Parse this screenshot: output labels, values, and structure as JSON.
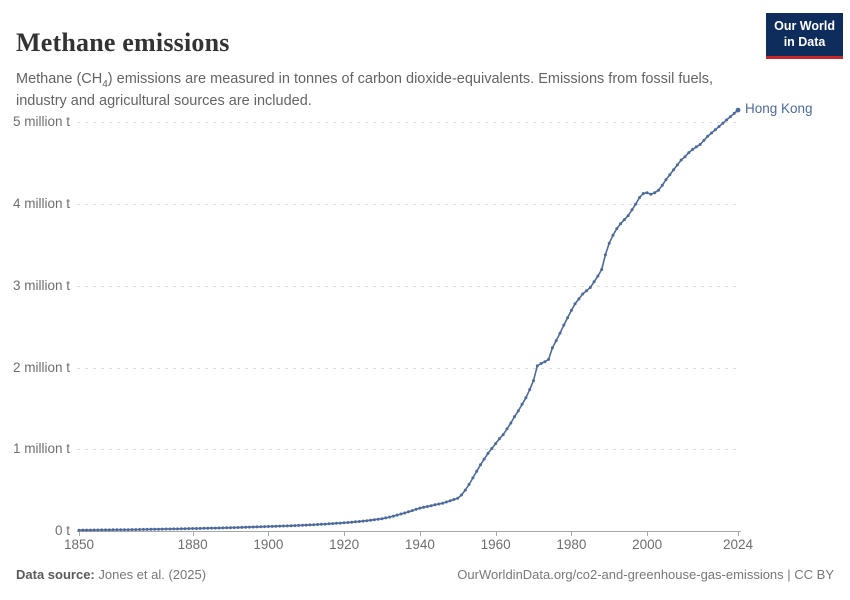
{
  "header": {
    "title": "Methane emissions",
    "subtitle_pre": "Methane (CH",
    "subtitle_sub": "4",
    "subtitle_post": ") emissions are measured in tonnes of carbon dioxide-equivalents. Emissions from fossil fuels, industry and agricultural sources are included.",
    "logo": {
      "line1": "Our World",
      "line2": "in Data",
      "bg_color": "#0E2C5C",
      "accent_color": "#C5272D"
    }
  },
  "footer": {
    "datasource_label": "Data source:",
    "datasource_value": "Jones et al. (2025)",
    "attribution": "OurWorldinData.org/co2-and-greenhouse-gas-emissions | CC BY"
  },
  "chart_data": {
    "type": "line",
    "title": "Methane emissions",
    "entity_label": "Hong Kong",
    "unit": "tonnes of CO2-equivalents",
    "value_scale": "millions",
    "line_color": "#4C6A9C",
    "grid": true,
    "gridline_color": "#dcdcdc",
    "axis_color": "#a8a8a8",
    "tick_label_color": "#6e6e6e",
    "xlim": [
      1850,
      2024
    ],
    "ylim": [
      0,
      5.25
    ],
    "x_ticks": [
      1850,
      1880,
      1900,
      1920,
      1940,
      1960,
      1980,
      2000,
      2024
    ],
    "y_ticks": [
      {
        "value": 0,
        "label": "0 t"
      },
      {
        "value": 1,
        "label": "1 million t"
      },
      {
        "value": 2,
        "label": "2 million t"
      },
      {
        "value": 3,
        "label": "3 million t"
      },
      {
        "value": 4,
        "label": "4 million t"
      },
      {
        "value": 5,
        "label": "5 million t"
      }
    ],
    "series": [
      {
        "name": "Hong Kong",
        "points": [
          [
            1850,
            0.01
          ],
          [
            1852,
            0.011
          ],
          [
            1854,
            0.012
          ],
          [
            1856,
            0.013
          ],
          [
            1858,
            0.014
          ],
          [
            1860,
            0.015
          ],
          [
            1862,
            0.016
          ],
          [
            1864,
            0.017
          ],
          [
            1866,
            0.018
          ],
          [
            1868,
            0.02
          ],
          [
            1870,
            0.022
          ],
          [
            1872,
            0.023
          ],
          [
            1874,
            0.025
          ],
          [
            1876,
            0.026
          ],
          [
            1878,
            0.028
          ],
          [
            1880,
            0.03
          ],
          [
            1882,
            0.032
          ],
          [
            1884,
            0.034
          ],
          [
            1886,
            0.036
          ],
          [
            1888,
            0.038
          ],
          [
            1890,
            0.04
          ],
          [
            1892,
            0.043
          ],
          [
            1894,
            0.046
          ],
          [
            1896,
            0.049
          ],
          [
            1898,
            0.052
          ],
          [
            1900,
            0.055
          ],
          [
            1902,
            0.058
          ],
          [
            1904,
            0.061
          ],
          [
            1906,
            0.064
          ],
          [
            1908,
            0.068
          ],
          [
            1910,
            0.072
          ],
          [
            1912,
            0.077
          ],
          [
            1914,
            0.082
          ],
          [
            1916,
            0.088
          ],
          [
            1918,
            0.094
          ],
          [
            1920,
            0.1
          ],
          [
            1922,
            0.108
          ],
          [
            1924,
            0.116
          ],
          [
            1926,
            0.126
          ],
          [
            1928,
            0.138
          ],
          [
            1930,
            0.15
          ],
          [
            1932,
            0.17
          ],
          [
            1934,
            0.195
          ],
          [
            1936,
            0.22
          ],
          [
            1938,
            0.25
          ],
          [
            1940,
            0.28
          ],
          [
            1942,
            0.3
          ],
          [
            1944,
            0.32
          ],
          [
            1946,
            0.34
          ],
          [
            1948,
            0.37
          ],
          [
            1950,
            0.4
          ],
          [
            1951,
            0.44
          ],
          [
            1952,
            0.5
          ],
          [
            1953,
            0.57
          ],
          [
            1954,
            0.65
          ],
          [
            1955,
            0.73
          ],
          [
            1956,
            0.81
          ],
          [
            1957,
            0.88
          ],
          [
            1958,
            0.95
          ],
          [
            1959,
            1.01
          ],
          [
            1960,
            1.07
          ],
          [
            1961,
            1.13
          ],
          [
            1962,
            1.18
          ],
          [
            1963,
            1.25
          ],
          [
            1964,
            1.32
          ],
          [
            1965,
            1.4
          ],
          [
            1966,
            1.47
          ],
          [
            1967,
            1.55
          ],
          [
            1968,
            1.63
          ],
          [
            1969,
            1.73
          ],
          [
            1970,
            1.84
          ],
          [
            1971,
            2.02
          ],
          [
            1972,
            2.05
          ],
          [
            1973,
            2.07
          ],
          [
            1974,
            2.1
          ],
          [
            1975,
            2.24
          ],
          [
            1976,
            2.33
          ],
          [
            1977,
            2.42
          ],
          [
            1978,
            2.52
          ],
          [
            1979,
            2.61
          ],
          [
            1980,
            2.7
          ],
          [
            1981,
            2.78
          ],
          [
            1982,
            2.84
          ],
          [
            1983,
            2.9
          ],
          [
            1984,
            2.94
          ],
          [
            1985,
            2.98
          ],
          [
            1986,
            3.05
          ],
          [
            1987,
            3.12
          ],
          [
            1988,
            3.2
          ],
          [
            1989,
            3.38
          ],
          [
            1990,
            3.52
          ],
          [
            1991,
            3.62
          ],
          [
            1992,
            3.7
          ],
          [
            1993,
            3.76
          ],
          [
            1994,
            3.81
          ],
          [
            1995,
            3.86
          ],
          [
            1996,
            3.93
          ],
          [
            1997,
            4.0
          ],
          [
            1998,
            4.08
          ],
          [
            1999,
            4.13
          ],
          [
            2000,
            4.14
          ],
          [
            2001,
            4.12
          ],
          [
            2002,
            4.14
          ],
          [
            2003,
            4.17
          ],
          [
            2004,
            4.23
          ],
          [
            2005,
            4.3
          ],
          [
            2006,
            4.36
          ],
          [
            2007,
            4.42
          ],
          [
            2008,
            4.48
          ],
          [
            2009,
            4.54
          ],
          [
            2010,
            4.58
          ],
          [
            2011,
            4.63
          ],
          [
            2012,
            4.67
          ],
          [
            2013,
            4.7
          ],
          [
            2014,
            4.73
          ],
          [
            2015,
            4.78
          ],
          [
            2016,
            4.83
          ],
          [
            2017,
            4.87
          ],
          [
            2018,
            4.91
          ],
          [
            2019,
            4.95
          ],
          [
            2020,
            4.99
          ],
          [
            2021,
            5.03
          ],
          [
            2022,
            5.07
          ],
          [
            2023,
            5.11
          ],
          [
            2024,
            5.15
          ]
        ]
      }
    ]
  }
}
